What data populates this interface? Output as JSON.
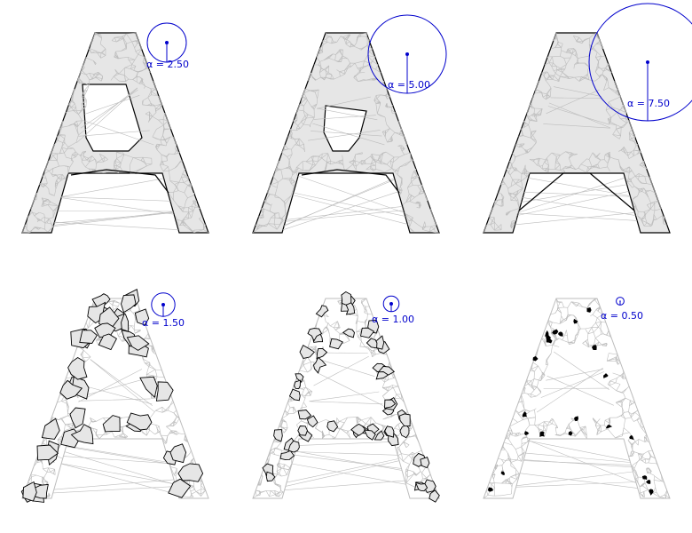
{
  "colors": {
    "mesh": "#bdbdbd",
    "fill": "#e6e6e6",
    "outline": "#000000",
    "accent": "#0000cc"
  },
  "panels": [
    {
      "alpha": 2.5,
      "label": "α = 2.50",
      "style": "full"
    },
    {
      "alpha": 5.0,
      "label": "α = 5.00",
      "style": "full"
    },
    {
      "alpha": 7.5,
      "label": "α = 7.50",
      "style": "full"
    },
    {
      "alpha": 1.5,
      "label": "α = 1.50",
      "style": "fragmented"
    },
    {
      "alpha": 1.0,
      "label": "α = 1.00",
      "style": "sparse"
    },
    {
      "alpha": 0.5,
      "label": "α = 0.50",
      "style": "tiny"
    }
  ]
}
